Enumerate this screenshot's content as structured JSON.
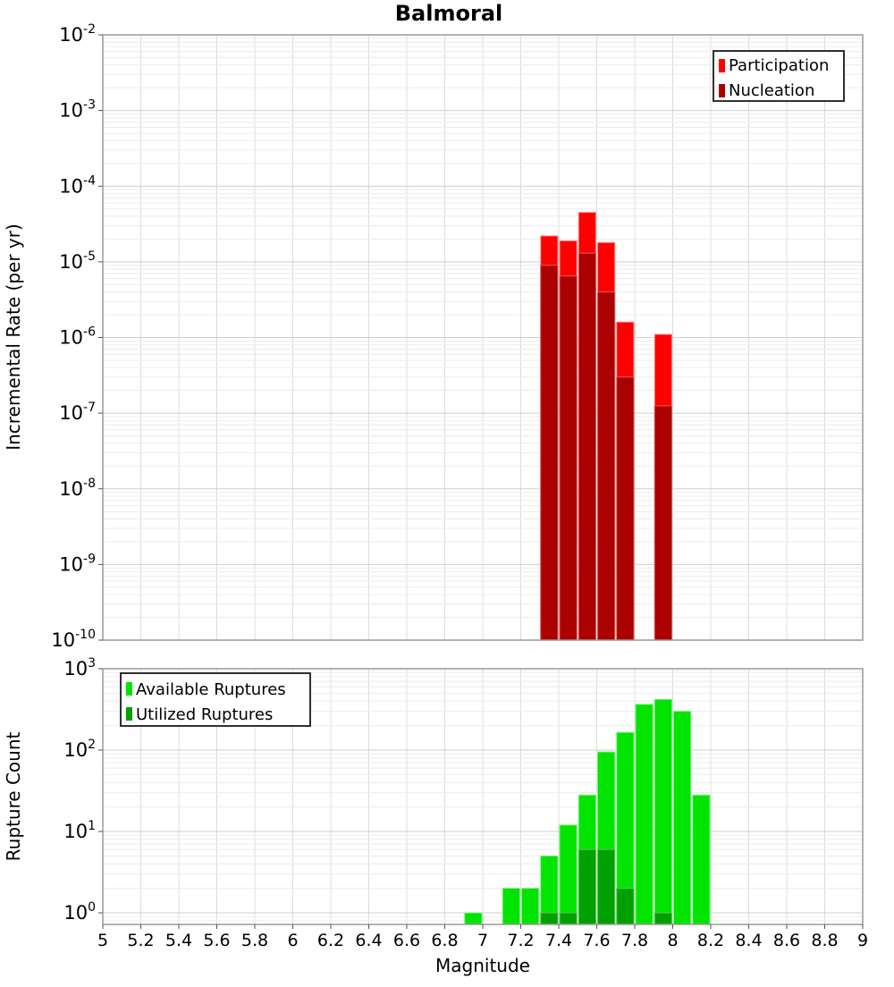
{
  "chart_data": [
    {
      "type": "bar",
      "id": "incremental-rate",
      "title": "Balmoral",
      "ylabel": "Incremental Rate (per yr)",
      "xlabel": "",
      "yscale": "log",
      "ylim": [
        1e-10,
        0.01
      ],
      "xlim": [
        5,
        9
      ],
      "xtick_step": 0.2,
      "bar_width": 0.1,
      "grid": true,
      "legend_position": "top-right",
      "legend": [
        {
          "label": "Participation",
          "color": "#ff0000"
        },
        {
          "label": "Nucleation",
          "color": "#aa0000"
        }
      ],
      "series": [
        {
          "name": "Participation",
          "color": "#ff0000",
          "edge": "#ff9090",
          "x": [
            7.35,
            7.45,
            7.55,
            7.65,
            7.75,
            7.95
          ],
          "y": [
            2.2e-05,
            1.9e-05,
            4.5e-05,
            1.8e-05,
            1.6e-06,
            1.1e-06
          ]
        },
        {
          "name": "Nucleation",
          "color": "#aa0000",
          "edge": "#d46060",
          "x": [
            7.35,
            7.45,
            7.55,
            7.65,
            7.75,
            7.95
          ],
          "y": [
            9e-06,
            6.5e-06,
            1.3e-05,
            4e-06,
            3e-07,
            1.25e-07
          ]
        }
      ]
    },
    {
      "type": "bar",
      "id": "rupture-count",
      "title": "",
      "ylabel": "Rupture Count",
      "xlabel": "Magnitude",
      "yscale": "log",
      "ylim": [
        0.72,
        1000
      ],
      "xlim": [
        5,
        9
      ],
      "xtick_step": 0.2,
      "bar_width": 0.1,
      "grid": true,
      "legend_position": "top-left",
      "legend": [
        {
          "label": "Available Ruptures",
          "color": "#00e400"
        },
        {
          "label": "Utilized Ruptures",
          "color": "#00a000"
        }
      ],
      "series": [
        {
          "name": "Available Ruptures",
          "color": "#00e400",
          "edge": "#80f080",
          "x": [
            6.95,
            7.15,
            7.25,
            7.35,
            7.45,
            7.55,
            7.65,
            7.75,
            7.85,
            7.95,
            8.05,
            8.15
          ],
          "y": [
            1,
            2,
            2,
            5,
            12,
            28,
            95,
            165,
            365,
            420,
            300,
            28
          ]
        },
        {
          "name": "Utilized Ruptures",
          "color": "#00a000",
          "edge": "#60c860",
          "x": [
            7.35,
            7.45,
            7.55,
            7.65,
            7.75,
            7.95
          ],
          "y": [
            1,
            1,
            6,
            6,
            2,
            1
          ]
        }
      ]
    }
  ]
}
